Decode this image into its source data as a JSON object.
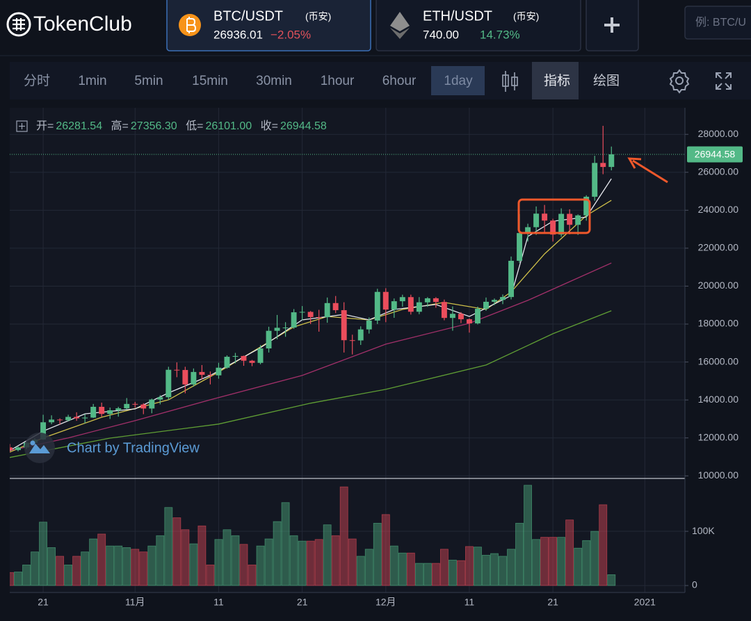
{
  "header": {
    "logo": "TokenClub",
    "tabs": [
      {
        "pair": "BTC/USDT",
        "exchange": "(币安)",
        "price": "26936.01",
        "change": "−2.05%"
      },
      {
        "pair": "ETH/USDT",
        "exchange": "(币安)",
        "price": "740.00",
        "change": "14.73%"
      }
    ],
    "search_placeholder": "例: BTC/U"
  },
  "toolbar": {
    "intervals": [
      "分时",
      "1min",
      "5min",
      "15min",
      "30min",
      "1hour",
      "6hour",
      "1day"
    ],
    "buttons": [
      "指标",
      "绘图"
    ]
  },
  "ohlc_legend": [
    {
      "label": "开=",
      "value": "26281.54"
    },
    {
      "label": "高=",
      "value": "27356.30"
    },
    {
      "label": "低=",
      "value": "26101.00"
    },
    {
      "label": "收=",
      "value": "26944.58"
    }
  ],
  "watermark": "Chart by TradingView",
  "chart_data": {
    "type": "candlestick",
    "up_color": "#53b987",
    "down_color": "#eb4d5c",
    "open": [
      11500,
      11360,
      11495,
      11745,
      11916,
      12823,
      12965,
      12931,
      13108,
      13031,
      13071,
      13639,
      13266,
      13456,
      13560,
      13791,
      13761,
      13549,
      14023,
      14144,
      15591,
      15580,
      14818,
      15475,
      15328,
      15297,
      15701,
      16276,
      16317,
      16068,
      15955,
      16716,
      17645,
      17804,
      17817,
      18621,
      18642,
      18370,
      18364,
      19107,
      18732,
      17150,
      17139,
      17719,
      18185,
      19696,
      18765,
      19204,
      19421,
      18650,
      19147,
      19359,
      19166,
      18324,
      18541,
      18254,
      18036,
      18808,
      19175,
      19273,
      19426,
      21335,
      22797,
      23107,
      23821,
      23455,
      22719,
      23810,
      23232,
      23729,
      24712,
      26493,
      26281.54
    ],
    "high": [
      11680,
      11550,
      11830,
      11990,
      13220,
      13190,
      13030,
      13220,
      13350,
      13250,
      13790,
      13860,
      13600,
      13640,
      14100,
      13900,
      13830,
      14070,
      14250,
      15750,
      15980,
      15750,
      15660,
      15840,
      15500,
      15960,
      16350,
      16480,
      16340,
      16110,
      16890,
      17860,
      18480,
      18100,
      18790,
      18950,
      18690,
      18750,
      19400,
      19480,
      19150,
      17440,
      17880,
      18350,
      19860,
      19890,
      19350,
      19550,
      19550,
      19420,
      19420,
      19420,
      19290,
      18930,
      18630,
      18300,
      18920,
      19400,
      19350,
      19560,
      21560,
      23800,
      23290,
      24200,
      24280,
      23550,
      24100,
      24050,
      23780,
      24790,
      26870,
      28450,
      27356.3
    ],
    "low": [
      11250,
      11290,
      11400,
      11690,
      11900,
      12720,
      12710,
      12870,
      12900,
      12770,
      13050,
      13120,
      13000,
      13120,
      13500,
      13600,
      13250,
      13300,
      13770,
      14000,
      15200,
      14350,
      14700,
      15080,
      14820,
      15120,
      15650,
      15930,
      15800,
      15780,
      15880,
      16500,
      17200,
      17330,
      17750,
      18200,
      18000,
      17600,
      18070,
      18580,
      16500,
      16400,
      16900,
      17500,
      18000,
      18100,
      18330,
      18920,
      18500,
      18520,
      18910,
      18860,
      18200,
      17650,
      18050,
      17550,
      17980,
      18700,
      19000,
      19050,
      19300,
      21230,
      22350,
      22700,
      22750,
      22350,
      22600,
      22730,
      22700,
      23450,
      24500,
      25900,
      26101
    ],
    "close": [
      11360,
      11495,
      11745,
      11916,
      12823,
      12965,
      12931,
      13108,
      13031,
      13071,
      13639,
      13266,
      13456,
      13560,
      13791,
      13761,
      13549,
      14023,
      14144,
      15591,
      15580,
      14818,
      15475,
      15328,
      15297,
      15701,
      16276,
      16317,
      16068,
      15955,
      16716,
      17645,
      17804,
      17817,
      18621,
      18642,
      18370,
      18364,
      19107,
      18732,
      17150,
      17139,
      17719,
      18185,
      19696,
      18765,
      19204,
      19421,
      18650,
      19147,
      19359,
      19166,
      18324,
      18541,
      18254,
      18036,
      18808,
      19175,
      19273,
      19426,
      21335,
      22797,
      23107,
      23821,
      23455,
      22719,
      23810,
      23232,
      23729,
      24712,
      26493,
      26281,
      26944.58
    ],
    "volume": [
      24000,
      25000,
      38000,
      62000,
      117000,
      70000,
      54000,
      38000,
      54000,
      62000,
      86000,
      95000,
      73000,
      73000,
      70000,
      67000,
      62000,
      73000,
      92000,
      144000,
      125000,
      103000,
      77000,
      110000,
      38000,
      85000,
      103000,
      92000,
      76000,
      38000,
      73000,
      86000,
      118000,
      153000,
      92000,
      82000,
      82000,
      85000,
      112000,
      92000,
      182000,
      86000,
      54000,
      67000,
      115000,
      131000,
      73000,
      60000,
      60000,
      41000,
      41000,
      41000,
      67000,
      47000,
      46000,
      72000,
      71000,
      56000,
      59000,
      54000,
      67000,
      115000,
      185000,
      85000,
      89000,
      89000,
      89000,
      121000,
      69000,
      83000,
      100000,
      149000,
      20000
    ],
    "moving_averages": [
      {
        "color": "#5f9e34",
        "x": [
          0,
          12,
          25,
          36,
          45,
          57,
          65,
          72
        ],
        "values": [
          10970,
          11990,
          12730,
          13830,
          14560,
          15840,
          17490,
          18700
        ]
      },
      {
        "color": "#a3306a",
        "x": [
          0,
          7,
          15,
          24,
          35,
          45,
          55,
          62,
          72
        ],
        "values": [
          11330,
          12000,
          12910,
          14010,
          15290,
          16940,
          18040,
          19250,
          21220
        ]
      },
      {
        "color": "#cfc04a",
        "x": [
          0,
          4,
          11,
          19,
          25,
          34,
          38,
          43,
          47,
          52,
          57,
          60,
          64,
          69,
          72
        ],
        "values": [
          11250,
          12000,
          13090,
          14010,
          15470,
          17850,
          18400,
          18220,
          18770,
          19140,
          18770,
          19690,
          21700,
          23720,
          24520
        ]
      },
      {
        "color": "#e6e8ee",
        "x": [
          0,
          4,
          9,
          15,
          19,
          24,
          30,
          35,
          40,
          43,
          46,
          51,
          55,
          60,
          62,
          65,
          69,
          72
        ],
        "values": [
          11330,
          12360,
          13270,
          13530,
          14370,
          15290,
          16750,
          18220,
          18510,
          18220,
          18770,
          19030,
          18400,
          19500,
          22620,
          23420,
          23640,
          25660
        ]
      }
    ],
    "xlim": [
      0,
      80.8
    ],
    "xticks": [
      {
        "value": 4,
        "label": "21"
      },
      {
        "value": 15,
        "label": "11月"
      },
      {
        "value": 25,
        "label": "11"
      },
      {
        "value": 35,
        "label": "21"
      },
      {
        "value": 45,
        "label": "12月"
      },
      {
        "value": 55,
        "label": "11"
      },
      {
        "value": 65,
        "label": "21"
      },
      {
        "value": 76,
        "label": "2021"
      }
    ],
    "ylim": [
      9900,
      29400
    ],
    "yticks": [
      {
        "value": 10000,
        "label": "10000.00"
      },
      {
        "value": 12000,
        "label": "12000.00"
      },
      {
        "value": 14000,
        "label": "14000.00"
      },
      {
        "value": 16000,
        "label": "16000.00"
      },
      {
        "value": 18000,
        "label": "18000.00"
      },
      {
        "value": 20000,
        "label": "20000.00"
      },
      {
        "value": 22000,
        "label": "22000.00"
      },
      {
        "value": 24000,
        "label": "24000.00"
      },
      {
        "value": 26000,
        "label": "26000.00"
      },
      {
        "value": 28000,
        "label": "28000.00"
      }
    ],
    "volume_ylim": [
      0,
      195000
    ],
    "volume_yticks": [
      0,
      {
        "value": 100000,
        "label": "100K"
      }
    ],
    "grid": true
  }
}
